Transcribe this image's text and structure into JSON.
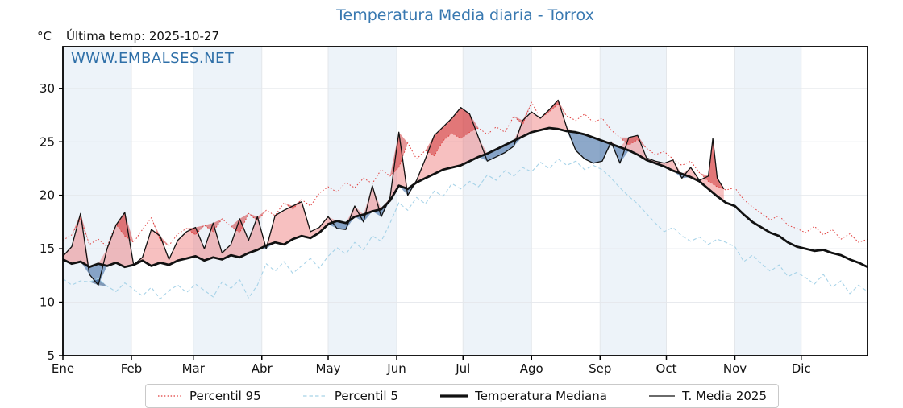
{
  "header": {
    "title": "Temperatura Media diaria - Torrox",
    "unit": "°C",
    "last_temp": "Última temp: 2025-10-27",
    "watermark": "WWW.EMBALSES.NET",
    "title_color": "#3878b0",
    "watermark_color": "#2e6fa8"
  },
  "legend": {
    "items": [
      {
        "label": "Percentil 95",
        "style": "dotted",
        "color": "#e03b3a",
        "width": 1.2
      },
      {
        "label": "Percentil 5",
        "style": "dashed",
        "color": "#a7d3e8",
        "width": 1.2
      },
      {
        "label": "Temperatura Mediana",
        "style": "solid",
        "color": "#111111",
        "width": 3.2
      },
      {
        "label": "T. Media 2025",
        "style": "solid",
        "color": "#111111",
        "width": 1.2
      }
    ]
  },
  "chart_data": {
    "type": "line",
    "title": "Temperatura Media diaria - Torrox",
    "xlabel": "",
    "ylabel": "°C",
    "ylim": [
      5,
      33.9
    ],
    "yticks": [
      5,
      10,
      15,
      20,
      25,
      30
    ],
    "month_labels": [
      "Ene",
      "Feb",
      "Mar",
      "Abr",
      "May",
      "Jun",
      "Jul",
      "Ago",
      "Sep",
      "Oct",
      "Nov",
      "Dic"
    ],
    "month_start_days": [
      1,
      32,
      60,
      91,
      121,
      152,
      182,
      213,
      244,
      274,
      305,
      335
    ],
    "days_in_year": 365,
    "grid": true,
    "legend_position": "bottom",
    "colors": {
      "p95_line": "#e03b3a",
      "p5_line": "#a7d3e8",
      "median_line": "#111111",
      "t2025_line": "#111111",
      "fill_above_median": "rgba(235,90,90,0.38)",
      "fill_above_p95": "rgba(205,45,48,0.5)",
      "fill_below_median": "rgba(65,110,165,0.6)",
      "fill_below_p5": "rgba(38,78,130,0.55)",
      "month_band": "#edf3f9",
      "gridline": "#e4e7eb",
      "spine": "#000000"
    },
    "series": [
      {
        "name": "Percentil 95",
        "days": [
          1,
          5,
          9,
          13,
          17,
          21,
          25,
          29,
          33,
          37,
          41,
          45,
          49,
          53,
          57,
          61,
          65,
          69,
          73,
          77,
          81,
          85,
          89,
          93,
          97,
          101,
          105,
          109,
          113,
          117,
          121,
          125,
          129,
          133,
          137,
          141,
          145,
          149,
          153,
          157,
          161,
          165,
          169,
          173,
          177,
          181,
          185,
          189,
          193,
          197,
          201,
          205,
          209,
          213,
          217,
          221,
          225,
          229,
          233,
          237,
          241,
          245,
          249,
          253,
          257,
          261,
          265,
          269,
          273,
          277,
          281,
          285,
          289,
          293,
          297,
          301,
          305,
          309,
          313,
          317,
          321,
          325,
          329,
          333,
          337,
          341,
          345,
          349,
          353,
          357,
          361,
          365
        ],
        "values": [
          15.8,
          16.3,
          17.8,
          15.4,
          15.9,
          15.2,
          17.3,
          16.2,
          15.6,
          16.8,
          17.9,
          15.8,
          15.3,
          16.4,
          16.9,
          16.3,
          17.2,
          16.6,
          17.8,
          17.1,
          16.5,
          18.3,
          17.6,
          18.6,
          18.1,
          19.3,
          18.7,
          19.6,
          19.0,
          20.2,
          20.8,
          20.3,
          21.2,
          20.7,
          21.6,
          21.1,
          22.4,
          21.8,
          22.6,
          24.9,
          23.4,
          24.2,
          23.7,
          25.1,
          25.8,
          25.3,
          25.9,
          26.3,
          25.7,
          26.4,
          25.9,
          27.4,
          26.6,
          28.7,
          27.2,
          27.8,
          28.5,
          27.4,
          27.0,
          27.6,
          26.8,
          27.2,
          26.1,
          25.4,
          24.7,
          25.2,
          24.4,
          23.8,
          24.1,
          23.4,
          22.8,
          23.2,
          22.1,
          21.3,
          20.8,
          20.5,
          20.7,
          19.6,
          18.9,
          18.3,
          17.7,
          18.1,
          17.2,
          16.9,
          16.5,
          17.1,
          16.3,
          16.8,
          15.9,
          16.4,
          15.6,
          15.9
        ]
      },
      {
        "name": "Percentil 5",
        "days": [
          1,
          5,
          9,
          13,
          17,
          21,
          25,
          29,
          33,
          37,
          41,
          45,
          49,
          53,
          57,
          61,
          65,
          69,
          73,
          77,
          81,
          85,
          89,
          93,
          97,
          101,
          105,
          109,
          113,
          117,
          121,
          125,
          129,
          133,
          137,
          141,
          145,
          149,
          153,
          157,
          161,
          165,
          169,
          173,
          177,
          181,
          185,
          189,
          193,
          197,
          201,
          205,
          209,
          213,
          217,
          221,
          225,
          229,
          233,
          237,
          241,
          245,
          249,
          253,
          257,
          261,
          265,
          269,
          273,
          277,
          281,
          285,
          289,
          293,
          297,
          301,
          305,
          309,
          313,
          317,
          321,
          325,
          329,
          333,
          337,
          341,
          345,
          349,
          353,
          357,
          361,
          365
        ],
        "values": [
          12.2,
          11.6,
          12.0,
          11.9,
          12.2,
          11.5,
          11.0,
          11.8,
          11.2,
          10.6,
          11.4,
          10.3,
          11.1,
          11.6,
          10.9,
          11.7,
          11.1,
          10.5,
          11.9,
          11.3,
          12.1,
          10.4,
          11.6,
          13.6,
          12.9,
          13.8,
          12.7,
          13.4,
          14.1,
          13.2,
          14.3,
          15.1,
          14.5,
          15.6,
          14.9,
          16.2,
          15.7,
          17.4,
          19.3,
          18.6,
          19.8,
          19.2,
          20.4,
          19.9,
          21.1,
          20.6,
          21.3,
          20.8,
          21.9,
          21.4,
          22.3,
          21.8,
          22.6,
          22.2,
          23.1,
          22.5,
          23.4,
          22.8,
          23.2,
          22.4,
          22.8,
          22.4,
          21.6,
          20.7,
          19.9,
          19.2,
          18.3,
          17.4,
          16.6,
          17.0,
          16.2,
          15.7,
          16.1,
          15.4,
          15.9,
          15.6,
          15.2,
          13.8,
          14.4,
          13.6,
          12.9,
          13.5,
          12.4,
          12.8,
          12.3,
          11.7,
          12.6,
          11.4,
          12.0,
          10.8,
          11.6,
          11.0
        ]
      },
      {
        "name": "Temperatura Mediana",
        "days": [
          1,
          5,
          9,
          13,
          17,
          21,
          25,
          29,
          33,
          37,
          41,
          45,
          49,
          53,
          57,
          61,
          65,
          69,
          73,
          77,
          81,
          85,
          89,
          93,
          97,
          101,
          105,
          109,
          113,
          117,
          121,
          125,
          129,
          133,
          137,
          141,
          145,
          149,
          153,
          157,
          161,
          165,
          169,
          173,
          177,
          181,
          185,
          189,
          193,
          197,
          201,
          205,
          209,
          213,
          217,
          221,
          225,
          229,
          233,
          237,
          241,
          245,
          249,
          253,
          257,
          261,
          265,
          269,
          273,
          277,
          281,
          285,
          289,
          293,
          297,
          301,
          305,
          309,
          313,
          317,
          321,
          325,
          329,
          333,
          337,
          341,
          345,
          349,
          353,
          357,
          361,
          365
        ],
        "values": [
          14.0,
          13.6,
          13.8,
          13.3,
          13.6,
          13.4,
          13.7,
          13.3,
          13.5,
          13.9,
          13.4,
          13.7,
          13.5,
          13.9,
          14.1,
          14.3,
          13.9,
          14.2,
          14.0,
          14.4,
          14.2,
          14.6,
          14.9,
          15.3,
          15.6,
          15.4,
          15.9,
          16.2,
          16.0,
          16.5,
          17.3,
          17.6,
          17.4,
          18.0,
          18.2,
          18.5,
          18.7,
          19.5,
          20.9,
          20.6,
          21.2,
          21.6,
          22.0,
          22.4,
          22.6,
          22.8,
          23.2,
          23.6,
          23.9,
          24.3,
          24.7,
          25.1,
          25.5,
          25.9,
          26.1,
          26.3,
          26.2,
          26.0,
          25.9,
          25.7,
          25.4,
          25.1,
          24.8,
          24.5,
          24.2,
          23.8,
          23.3,
          23.0,
          22.7,
          22.3,
          22.0,
          21.7,
          21.3,
          20.6,
          19.9,
          19.3,
          19.0,
          18.2,
          17.5,
          17.0,
          16.5,
          16.2,
          15.6,
          15.2,
          15.0,
          14.8,
          14.9,
          14.6,
          14.4,
          14.0,
          13.7,
          13.3
        ]
      },
      {
        "name": "T. Media 2025",
        "days": [
          1,
          5,
          9,
          13,
          17,
          21,
          25,
          29,
          33,
          37,
          41,
          45,
          49,
          53,
          57,
          61,
          65,
          69,
          73,
          77,
          81,
          85,
          89,
          93,
          97,
          101,
          105,
          109,
          113,
          117,
          121,
          125,
          129,
          133,
          137,
          141,
          145,
          149,
          153,
          157,
          161,
          165,
          169,
          173,
          177,
          181,
          185,
          189,
          193,
          197,
          201,
          205,
          209,
          213,
          217,
          221,
          225,
          229,
          233,
          237,
          241,
          245,
          249,
          253,
          257,
          261,
          265,
          269,
          273,
          277,
          281,
          285,
          289,
          293,
          295,
          297,
          300
        ],
        "values": [
          14.3,
          15.2,
          18.3,
          12.6,
          11.6,
          15.0,
          17.2,
          18.4,
          13.5,
          14.2,
          16.8,
          16.2,
          14.0,
          15.8,
          16.6,
          17.0,
          15.0,
          17.4,
          14.6,
          15.4,
          17.8,
          15.8,
          18.0,
          15.0,
          18.1,
          18.6,
          19.0,
          19.4,
          16.6,
          17.0,
          18.0,
          16.9,
          16.8,
          19.0,
          17.5,
          20.9,
          18.0,
          19.8,
          25.9,
          20.0,
          21.4,
          23.4,
          25.6,
          26.4,
          27.2,
          28.2,
          27.6,
          25.4,
          23.2,
          23.6,
          24.0,
          24.6,
          27.0,
          27.8,
          27.2,
          28.0,
          28.9,
          26.3,
          24.2,
          23.4,
          23.0,
          23.2,
          25.0,
          23.0,
          25.4,
          25.6,
          23.5,
          23.2,
          23.0,
          23.3,
          21.6,
          22.6,
          21.4,
          21.8,
          25.3,
          21.6,
          20.6
        ]
      }
    ]
  }
}
